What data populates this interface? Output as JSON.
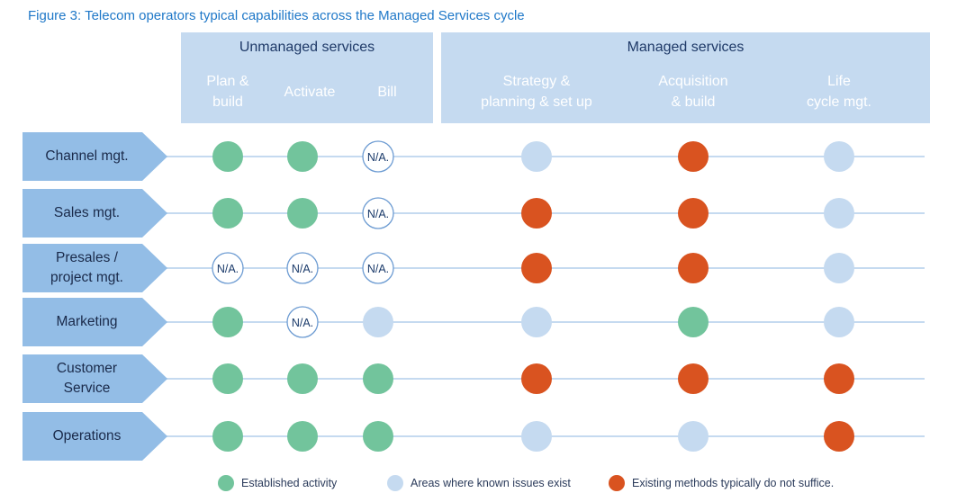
{
  "title": "Figure 3: Telecom operators typical capabilities across the Managed Services cycle",
  "colors": {
    "established": "#72c49c",
    "known_issues": "#c5daf0",
    "not_suffice": "#d95320",
    "na_border": "#6c9bd2",
    "row_fill": "#93bde6",
    "line": "#c5daf0"
  },
  "groups": [
    {
      "label": "Unmanaged services"
    },
    {
      "label": "Managed services"
    }
  ],
  "columns": [
    {
      "label": "Plan &\nbuild"
    },
    {
      "label": "Activate"
    },
    {
      "label": "Bill"
    },
    {
      "label": "Strategy &\nplanning & set up"
    },
    {
      "label": "Acquisition\n& build"
    },
    {
      "label": "Life\ncycle mgt."
    }
  ],
  "na_text": "N/A.",
  "rows": [
    {
      "label": "Channel mgt.",
      "cells": [
        "established",
        "established",
        "na",
        "known_issues",
        "not_suffice",
        "known_issues"
      ]
    },
    {
      "label": "Sales mgt.",
      "cells": [
        "established",
        "established",
        "na",
        "not_suffice",
        "not_suffice",
        "known_issues"
      ]
    },
    {
      "label": "Presales /\nproject mgt.",
      "cells": [
        "na",
        "na",
        "na",
        "not_suffice",
        "not_suffice",
        "known_issues"
      ]
    },
    {
      "label": "Marketing",
      "cells": [
        "established",
        "na",
        "known_issues",
        "known_issues",
        "established",
        "known_issues"
      ]
    },
    {
      "label": "Customer\nService",
      "cells": [
        "established",
        "established",
        "established",
        "not_suffice",
        "not_suffice",
        "not_suffice"
      ]
    },
    {
      "label": "Operations",
      "cells": [
        "established",
        "established",
        "established",
        "known_issues",
        "known_issues",
        "not_suffice"
      ]
    }
  ],
  "legend": [
    {
      "key": "established",
      "label": "Established activity"
    },
    {
      "key": "known_issues",
      "label": "Areas where known issues exist"
    },
    {
      "key": "not_suffice",
      "label": "Existing methods typically do not suffice."
    }
  ]
}
